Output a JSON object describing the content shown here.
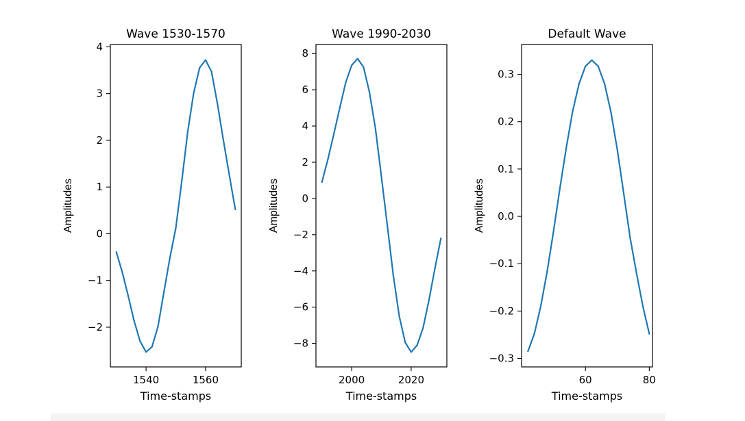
{
  "chart_data": [
    {
      "type": "line",
      "title": "Wave 1530-1570",
      "xlabel": "Time-stamps",
      "ylabel": "Amplitudes",
      "xlim": [
        1528,
        1572
      ],
      "ylim": [
        -2.85,
        4.05
      ],
      "xticks": [
        1540,
        1560
      ],
      "yticks": [
        -2,
        -1,
        0,
        1,
        2,
        3,
        4
      ],
      "color": "#1f77b4",
      "series": [
        {
          "x": [
            1530,
            1532,
            1534,
            1536,
            1538,
            1540,
            1542,
            1544,
            1546,
            1548,
            1550,
            1552,
            1554,
            1556,
            1558,
            1560,
            1562,
            1564,
            1566,
            1568,
            1570
          ],
          "y": [
            -0.39,
            -0.82,
            -1.33,
            -1.87,
            -2.3,
            -2.53,
            -2.42,
            -1.99,
            -1.25,
            -0.52,
            0.12,
            1.12,
            2.18,
            3.01,
            3.55,
            3.72,
            3.47,
            2.78,
            2.0,
            1.25,
            0.52
          ]
        }
      ]
    },
    {
      "type": "line",
      "title": "Wave 1990-2030",
      "xlabel": "Time-stamps",
      "ylabel": "Amplitudes",
      "xlim": [
        1988,
        2032
      ],
      "ylim": [
        -9.3,
        8.5
      ],
      "xticks": [
        2000,
        2020
      ],
      "yticks": [
        -8,
        -6,
        -4,
        -2,
        0,
        2,
        4,
        6,
        8
      ],
      "color": "#1f77b4",
      "series": [
        {
          "x": [
            1990,
            1992,
            1994,
            1996,
            1998,
            2000,
            2002,
            2004,
            2006,
            2008,
            2010,
            2012,
            2014,
            2016,
            2018,
            2020,
            2022,
            2024,
            2026,
            2028,
            2030
          ],
          "y": [
            0.9,
            2.15,
            3.55,
            5.0,
            6.4,
            7.35,
            7.72,
            7.25,
            5.85,
            3.85,
            1.2,
            -1.5,
            -4.25,
            -6.5,
            -7.95,
            -8.48,
            -8.1,
            -7.15,
            -5.6,
            -3.85,
            -2.2
          ]
        }
      ]
    },
    {
      "type": "line",
      "title": "Default Wave",
      "xlabel": "Time-stamps",
      "ylabel": "Amplitudes",
      "xlim": [
        40,
        81
      ],
      "ylim": [
        -0.318,
        0.363
      ],
      "xticks": [
        60,
        80
      ],
      "yticks": [
        -0.3,
        -0.2,
        -0.1,
        0.0,
        0.1,
        0.2,
        0.3
      ],
      "color": "#1f77b4",
      "series": [
        {
          "x": [
            42,
            44,
            46,
            48,
            50,
            52,
            54,
            56,
            58,
            60,
            62,
            64,
            66,
            68,
            70,
            72,
            74,
            76,
            78,
            80
          ],
          "y": [
            -0.285,
            -0.248,
            -0.19,
            -0.117,
            -0.032,
            0.059,
            0.145,
            0.222,
            0.28,
            0.317,
            0.33,
            0.317,
            0.28,
            0.22,
            0.14,
            0.048,
            -0.045,
            -0.12,
            -0.19,
            -0.248
          ]
        }
      ]
    }
  ]
}
